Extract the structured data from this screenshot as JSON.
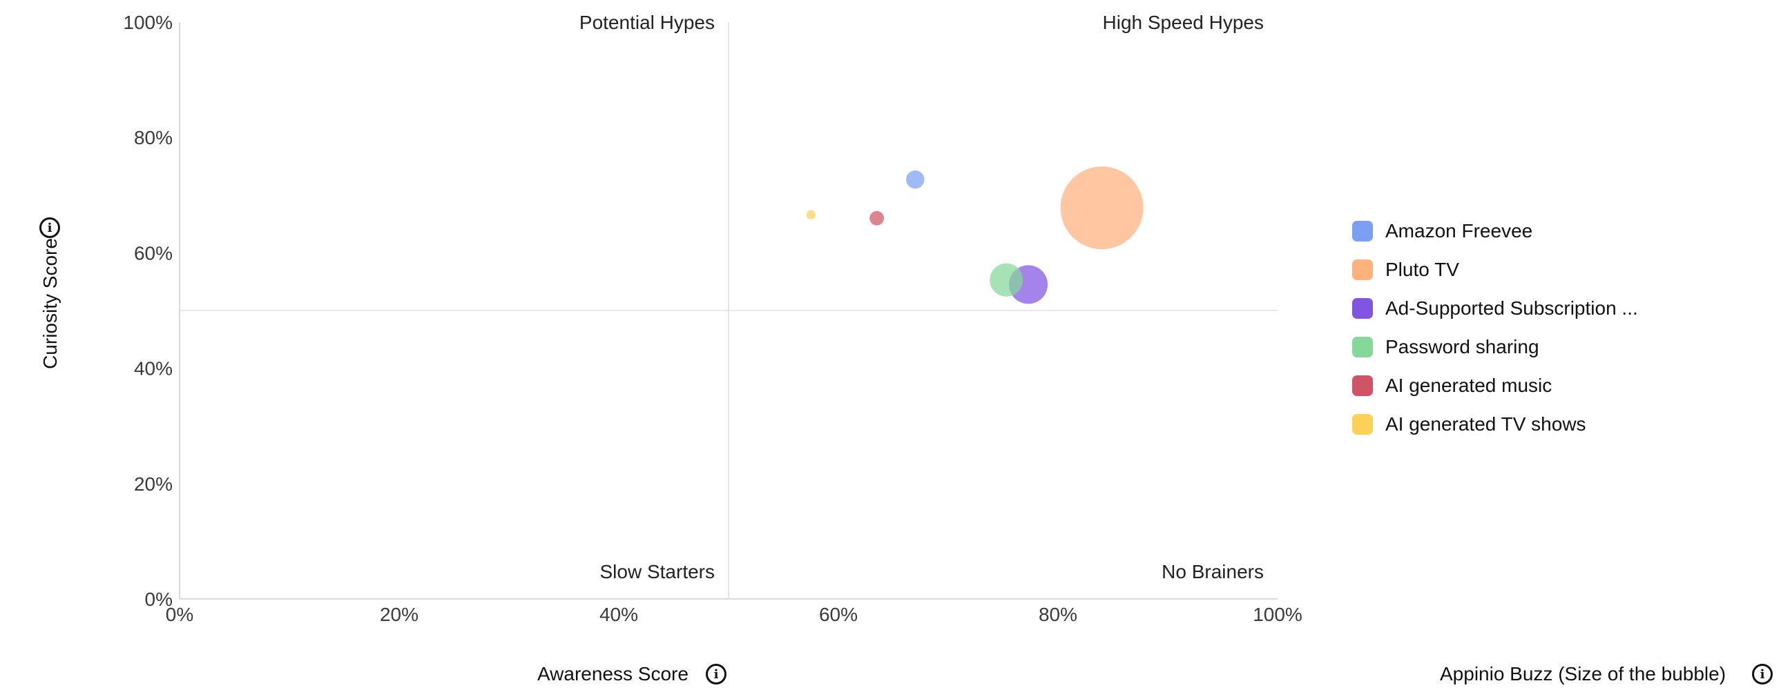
{
  "chart_data": {
    "type": "scatter",
    "subtype": "bubble",
    "xlabel": "Awareness Score",
    "ylabel": "Curiosity Score",
    "size_label": "Appinio Buzz (Size of the bubble)",
    "xlim": [
      0,
      100
    ],
    "ylim": [
      0,
      100
    ],
    "x_ticks": [
      "0%",
      "20%",
      "40%",
      "60%",
      "80%",
      "100%"
    ],
    "y_ticks": [
      "0%",
      "20%",
      "40%",
      "60%",
      "80%",
      "100%"
    ],
    "quadrants": {
      "top_left": "Potential Hypes",
      "top_right": "High Speed Hypes",
      "bottom_left": "Slow Starters",
      "bottom_right": "No Brainers"
    },
    "quadrant_split": {
      "x": 50,
      "y": 50
    },
    "legend_position": "right",
    "series": [
      {
        "name": "Amazon Freevee",
        "x": 67,
        "y": 72.7,
        "size": 1.6,
        "color": "#7b9ff2"
      },
      {
        "name": "Pluto TV",
        "x": 84,
        "y": 67.8,
        "size": 33,
        "color": "#fdb27e"
      },
      {
        "name": "Ad-Supported Subscription ...",
        "x": 77.3,
        "y": 54.5,
        "size": 7.2,
        "color": "#8155e2"
      },
      {
        "name": "Password sharing",
        "x": 75.3,
        "y": 55.3,
        "size": 5.3,
        "color": "#85d79a"
      },
      {
        "name": "AI generated music",
        "x": 63.5,
        "y": 66,
        "size": 1,
        "color": "#cf5465"
      },
      {
        "name": "AI generated TV shows",
        "x": 57.5,
        "y": 66.6,
        "size": 0.4,
        "color": "#fdd057"
      }
    ]
  }
}
